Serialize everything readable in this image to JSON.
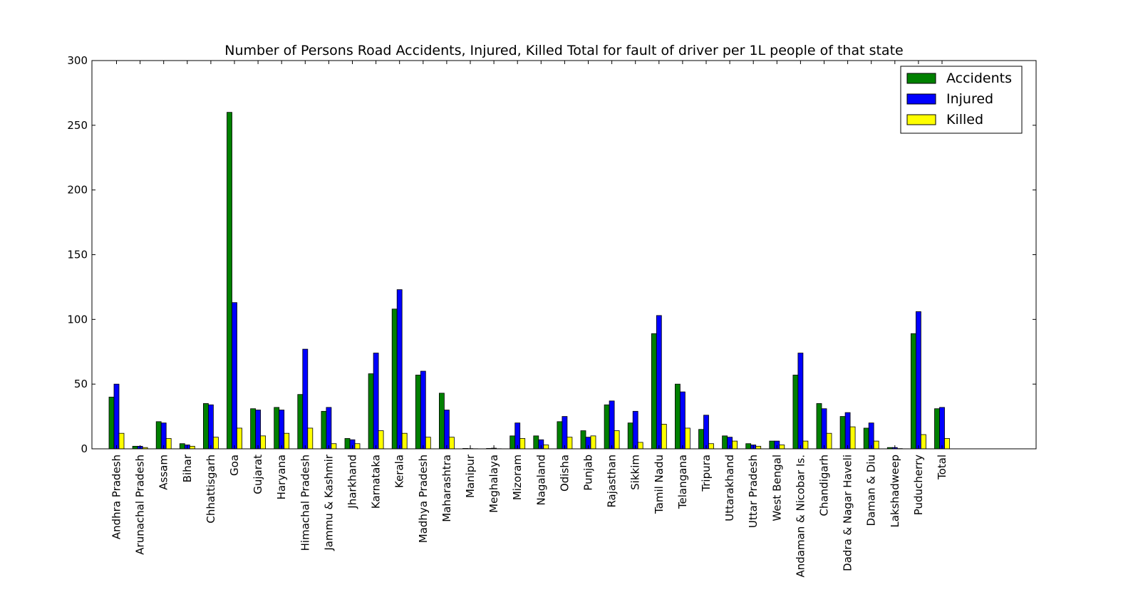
{
  "chart_data": {
    "type": "bar",
    "title": "Number of Persons Road Accidents, Injured, Killed Total for fault of driver per 1L people of that state",
    "xlabel": "",
    "ylabel": "",
    "ylim": [
      0,
      300
    ],
    "yticks": [
      0,
      50,
      100,
      150,
      200,
      250,
      300
    ],
    "legend_position": "top-right",
    "grid": false,
    "categories": [
      "Andhra Pradesh",
      "Arunachal Pradesh",
      "Assam",
      "Bihar",
      "Chhattisgarh",
      "Goa",
      "Gujarat",
      "Haryana",
      "Himachal Pradesh",
      "Jammu & Kashmir",
      "Jharkhand",
      "Karnataka",
      "Kerala",
      "Madhya Pradesh",
      "Maharashtra",
      "Manipur",
      "Meghalaya",
      "Mizoram",
      "Nagaland",
      "Odisha",
      "Punjab",
      "Rajasthan",
      "Sikkim",
      "Tamil Nadu",
      "Telangana",
      "Tripura",
      "Uttarakhand",
      "Uttar Pradesh",
      "West Bengal",
      "Andaman & Nicobar Is.",
      "Chandigarh",
      "Dadra & Nagar Haveli",
      "Daman & Diu",
      "Lakshadweep",
      "Puducherry",
      "Total"
    ],
    "series": [
      {
        "name": "Accidents",
        "color": "#008000",
        "values": [
          40,
          2,
          21,
          4,
          35,
          260,
          31,
          32,
          42,
          29,
          8,
          58,
          108,
          57,
          43,
          0.3,
          0.3,
          10,
          10,
          21,
          14,
          34,
          20,
          89,
          50,
          15,
          10,
          4,
          6,
          57,
          35,
          25,
          16,
          1,
          89,
          31
        ]
      },
      {
        "name": "Injured",
        "color": "#0000ff",
        "values": [
          50,
          2,
          20,
          3,
          34,
          113,
          30,
          30,
          77,
          32,
          7,
          74,
          123,
          60,
          30,
          0.2,
          0.5,
          20,
          7,
          25,
          9,
          37,
          29,
          103,
          44,
          26,
          9,
          3,
          6,
          74,
          31,
          28,
          20,
          1,
          106,
          32
        ]
      },
      {
        "name": "Killed",
        "color": "#ffff00",
        "values": [
          12,
          1,
          8,
          2,
          9,
          16,
          10,
          12,
          16,
          4,
          4,
          14,
          12,
          9,
          9,
          0.1,
          0.1,
          8,
          3,
          9,
          10,
          14,
          5,
          19,
          16,
          4,
          6,
          2,
          3,
          6,
          12,
          17,
          6,
          0.2,
          11,
          8
        ]
      }
    ]
  }
}
